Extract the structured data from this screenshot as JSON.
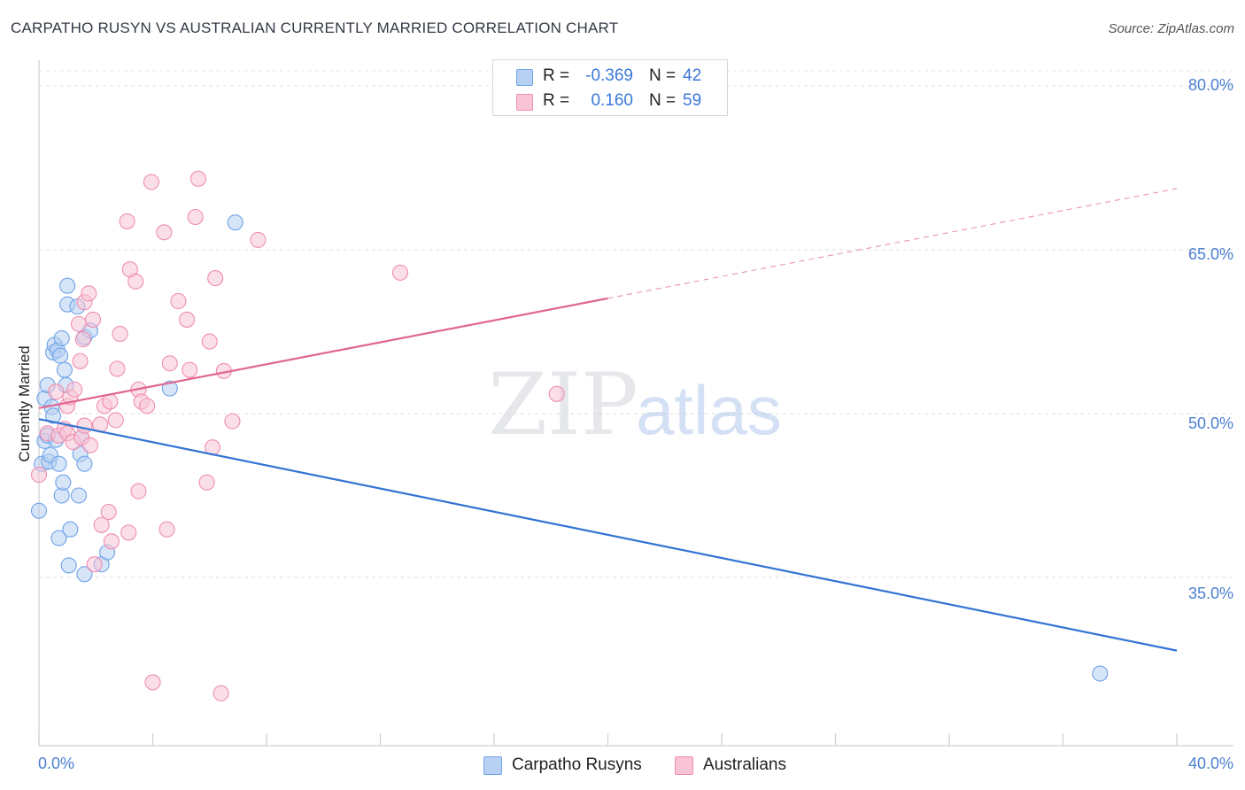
{
  "chart_data": {
    "type": "scatter",
    "title": "CARPATHO RUSYN VS AUSTRALIAN CURRENTLY MARRIED CORRELATION CHART",
    "source": "Source: ZipAtlas.com",
    "ylabel": "Currently Married",
    "xlabel": "",
    "xlim": [
      0,
      40
    ],
    "ylim": [
      20,
      82
    ],
    "x_tick_labels": [
      "0.0%",
      "40.0%"
    ],
    "y_ticks": [
      35,
      50,
      65,
      80
    ],
    "y_tick_labels": [
      "35.0%",
      "50.0%",
      "65.0%",
      "80.0%"
    ],
    "grid": "horizontal dashed",
    "legend_position": "bottom-center",
    "watermark": {
      "zip": "ZIP",
      "atlas": "atlas"
    },
    "series": [
      {
        "name": "Carpatho Rusyns",
        "color": "#6fa3e8",
        "fill": "#b7d0f3",
        "line_color": "#3274d4",
        "r_label": "R =",
        "r_value": "-0.369",
        "n_label": "N =",
        "n_value": "42",
        "trend": {
          "x0": 0,
          "y0": 49.5,
          "x1": 40,
          "y1": 28.3,
          "solid_to": 40
        },
        "points": [
          [
            0.0,
            41.1
          ],
          [
            0.1,
            45.4
          ],
          [
            0.2,
            47.5
          ],
          [
            0.2,
            51.4
          ],
          [
            0.3,
            52.6
          ],
          [
            0.3,
            48.0
          ],
          [
            0.35,
            45.6
          ],
          [
            0.4,
            46.2
          ],
          [
            0.45,
            50.6
          ],
          [
            0.5,
            55.6
          ],
          [
            0.5,
            49.8
          ],
          [
            0.55,
            56.3
          ],
          [
            0.6,
            47.6
          ],
          [
            0.65,
            55.8
          ],
          [
            0.7,
            45.4
          ],
          [
            0.7,
            38.6
          ],
          [
            0.75,
            55.3
          ],
          [
            0.8,
            42.5
          ],
          [
            0.8,
            56.9
          ],
          [
            0.85,
            43.7
          ],
          [
            0.9,
            54.0
          ],
          [
            0.95,
            52.6
          ],
          [
            1.0,
            60.0
          ],
          [
            1.0,
            61.7
          ],
          [
            1.05,
            36.1
          ],
          [
            1.1,
            39.4
          ],
          [
            1.35,
            59.8
          ],
          [
            1.4,
            42.5
          ],
          [
            1.45,
            46.3
          ],
          [
            1.5,
            47.8
          ],
          [
            1.6,
            45.4
          ],
          [
            1.6,
            35.3
          ],
          [
            1.6,
            57.0
          ],
          [
            1.8,
            57.6
          ],
          [
            2.2,
            36.2
          ],
          [
            2.4,
            37.3
          ],
          [
            4.6,
            52.3
          ],
          [
            6.9,
            67.5
          ],
          [
            37.3,
            26.2
          ]
        ]
      },
      {
        "name": "Australians",
        "color": "#f08db0",
        "fill": "#f8c4d6",
        "line_color": "#e0668f",
        "r_label": "R =",
        "r_value": "0.160",
        "n_label": "N =",
        "n_value": "59",
        "trend": {
          "x0": 0,
          "y0": 50.5,
          "x1": 40,
          "y1": 70.6,
          "solid_to": 20
        },
        "points": [
          [
            0.0,
            44.4
          ],
          [
            0.3,
            48.2
          ],
          [
            0.6,
            52.0
          ],
          [
            0.7,
            48.0
          ],
          [
            0.9,
            48.6
          ],
          [
            1.0,
            50.7
          ],
          [
            1.0,
            48.2
          ],
          [
            1.1,
            51.5
          ],
          [
            1.2,
            47.4
          ],
          [
            1.25,
            52.2
          ],
          [
            1.4,
            58.2
          ],
          [
            1.45,
            54.8
          ],
          [
            1.5,
            47.8
          ],
          [
            1.55,
            56.8
          ],
          [
            1.6,
            48.9
          ],
          [
            1.6,
            60.2
          ],
          [
            1.75,
            61.0
          ],
          [
            1.8,
            47.1
          ],
          [
            1.9,
            58.6
          ],
          [
            1.95,
            36.2
          ],
          [
            2.15,
            49.0
          ],
          [
            2.2,
            39.8
          ],
          [
            2.3,
            50.7
          ],
          [
            2.45,
            41.0
          ],
          [
            2.5,
            51.1
          ],
          [
            2.55,
            38.3
          ],
          [
            2.7,
            49.4
          ],
          [
            2.75,
            54.1
          ],
          [
            2.85,
            57.3
          ],
          [
            3.1,
            67.6
          ],
          [
            3.15,
            39.1
          ],
          [
            3.2,
            63.2
          ],
          [
            3.4,
            62.1
          ],
          [
            3.5,
            52.2
          ],
          [
            3.5,
            42.9
          ],
          [
            3.6,
            51.1
          ],
          [
            3.8,
            50.7
          ],
          [
            3.95,
            71.2
          ],
          [
            4.0,
            25.4
          ],
          [
            4.4,
            66.6
          ],
          [
            4.5,
            39.4
          ],
          [
            4.6,
            54.6
          ],
          [
            4.9,
            60.3
          ],
          [
            5.2,
            58.6
          ],
          [
            5.3,
            54.0
          ],
          [
            5.5,
            68.0
          ],
          [
            5.6,
            71.5
          ],
          [
            5.9,
            43.7
          ],
          [
            6.0,
            56.6
          ],
          [
            6.1,
            46.9
          ],
          [
            6.2,
            62.4
          ],
          [
            6.4,
            24.4
          ],
          [
            6.5,
            53.9
          ],
          [
            6.8,
            49.3
          ],
          [
            7.7,
            65.9
          ],
          [
            12.7,
            62.9
          ],
          [
            18.2,
            51.8
          ]
        ]
      }
    ]
  }
}
